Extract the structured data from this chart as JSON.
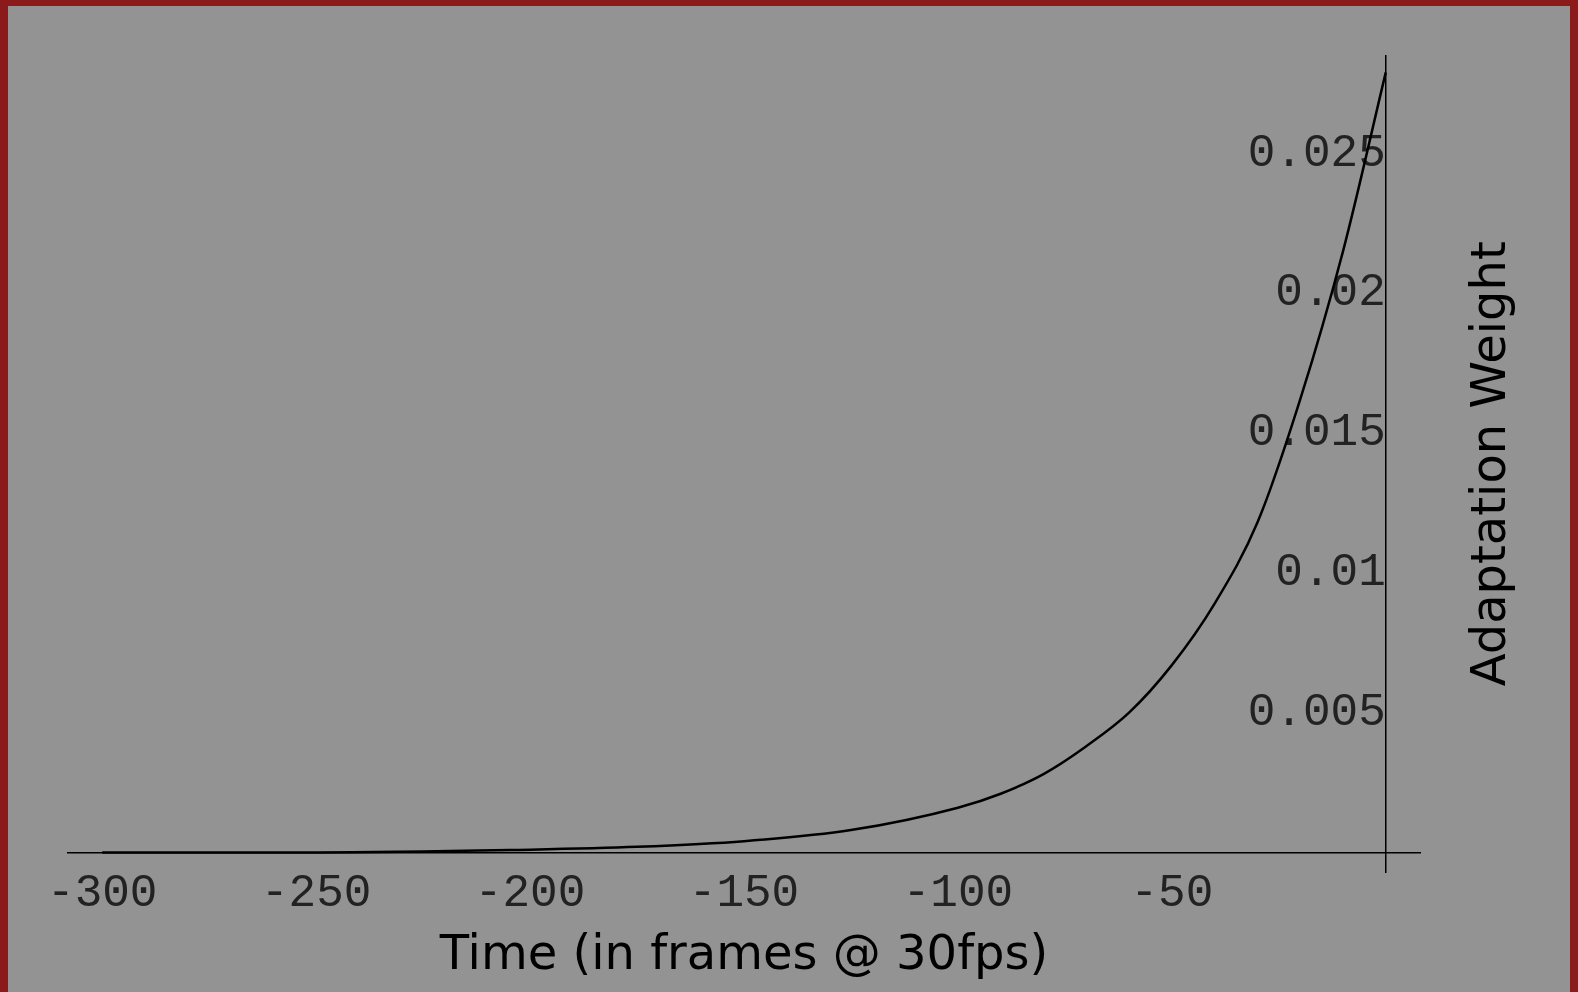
{
  "chart_data": {
    "type": "line",
    "xlabel": "Time (in frames @ 30fps)",
    "ylabel": "Adaptation Weight",
    "x": [
      -300,
      -250,
      -200,
      -175,
      -150,
      -125,
      -100,
      -90,
      -80,
      -70,
      -60,
      -50,
      -40,
      -30,
      -20,
      -10,
      0
    ],
    "series": [
      {
        "color": "#000000",
        "values": [
          0,
          0,
          0.0001,
          0.0002,
          0.0004,
          0.0008,
          0.0016,
          0.0021,
          0.0028,
          0.0038,
          0.005,
          0.0067,
          0.0089,
          0.0118,
          0.0162,
          0.0215,
          0.0279
        ]
      }
    ],
    "xlim": [
      -308,
      8
    ],
    "xticks": [
      -300,
      -250,
      -200,
      -150,
      -100,
      -50
    ],
    "ylim": [
      -0.0007,
      0.0285
    ],
    "yticks": [
      0.005,
      0.01,
      0.015,
      0.02,
      0.025
    ],
    "grid": false,
    "legend": false,
    "marker": "none",
    "line_style": "solid"
  }
}
